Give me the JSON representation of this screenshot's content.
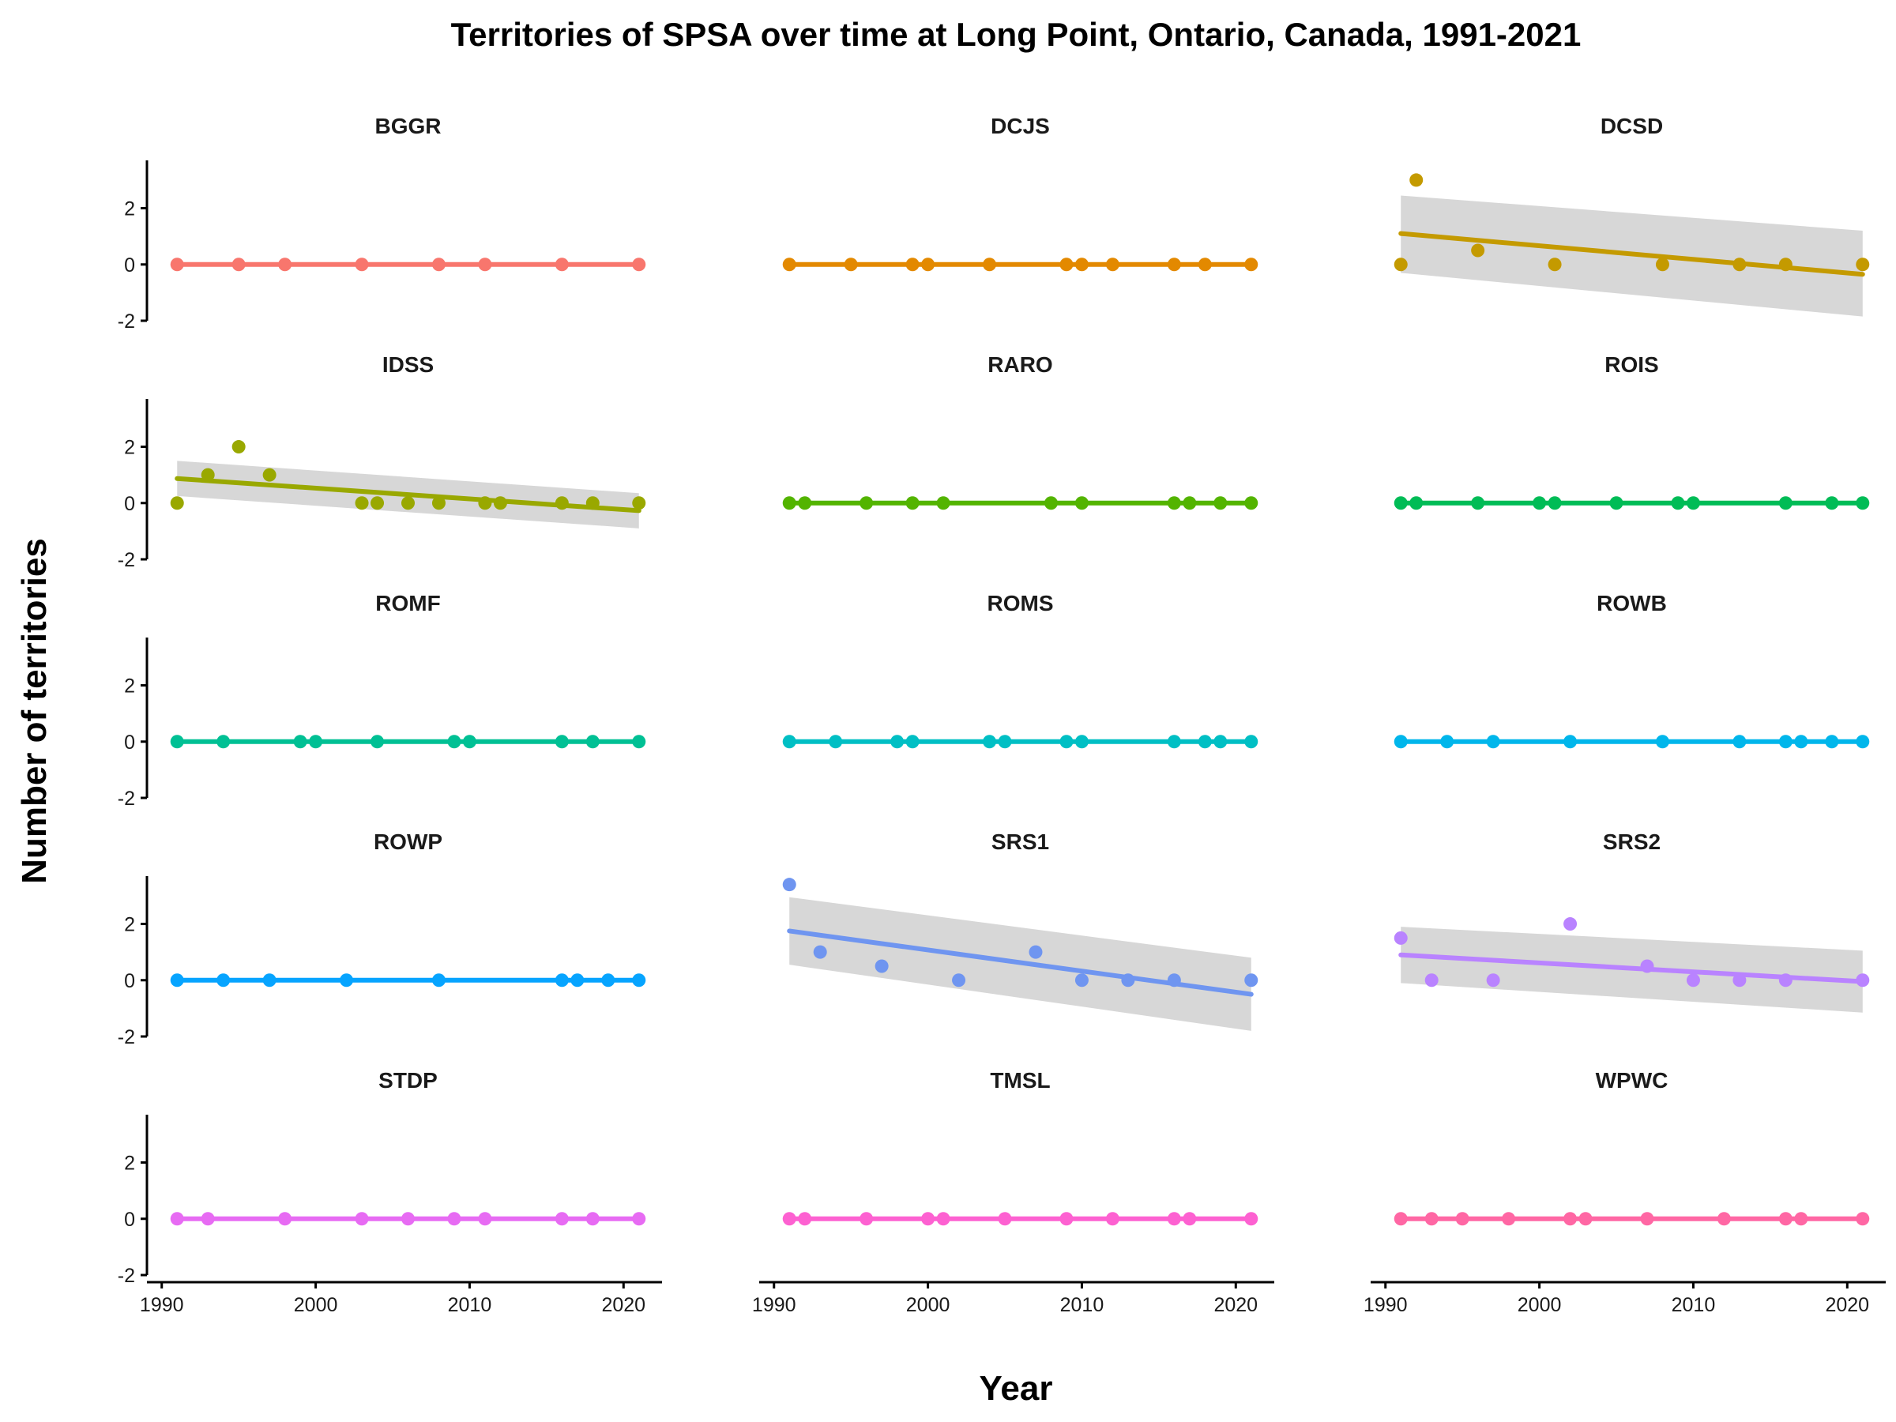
{
  "chart_data": {
    "type": "scatter",
    "title": "Territories of SPSA over time at Long Point, Ontario, Canada, 1991-2021",
    "xlabel": "Year",
    "ylabel": "Number of territories",
    "xlim": [
      1989.5,
      2022.5
    ],
    "ylim": [
      -2,
      3.7
    ],
    "x_ticks": [
      1990,
      2000,
      2010,
      2020
    ],
    "y_ticks": [
      -2,
      0,
      2
    ],
    "grid": false,
    "legend": "none",
    "trend_color": "#d3d3d3",
    "panels": [
      {
        "name": "BGGR",
        "color": "#F8766D",
        "x": [
          1991,
          1995,
          1998,
          2003,
          2008,
          2011,
          2016,
          2021
        ],
        "y": [
          0,
          0,
          0,
          0,
          0,
          0,
          0,
          0
        ],
        "trend": [
          0,
          0
        ],
        "band": null
      },
      {
        "name": "DCJS",
        "color": "#E38900",
        "x": [
          1991,
          1995,
          1999,
          2000,
          2004,
          2009,
          2010,
          2012,
          2016,
          2018,
          2021
        ],
        "y": [
          0,
          0,
          0,
          0,
          0,
          0,
          0,
          0,
          0,
          0,
          0
        ],
        "trend": [
          0,
          0
        ],
        "band": null
      },
      {
        "name": "DCSD",
        "color": "#C49A00",
        "x": [
          1991,
          1992,
          1996,
          2001,
          2008,
          2013,
          2016,
          2021
        ],
        "y": [
          0,
          3,
          0.5,
          0,
          0,
          0,
          0,
          0
        ],
        "trend": [
          1.1,
          -0.35
        ],
        "band": [
          [
            -0.3,
            2.45
          ],
          [
            -1.85,
            1.2
          ]
        ]
      },
      {
        "name": "IDSS",
        "color": "#99A800",
        "x": [
          1991,
          1993,
          1995,
          1997,
          2003,
          2004,
          2006,
          2008,
          2011,
          2012,
          2016,
          2018,
          2021
        ],
        "y": [
          0,
          1,
          2,
          1,
          0,
          0,
          0,
          0,
          0,
          0,
          0,
          0,
          0
        ],
        "trend": [
          0.87,
          -0.27
        ],
        "band": [
          [
            0.25,
            1.5
          ],
          [
            -0.9,
            0.35
          ]
        ]
      },
      {
        "name": "RARO",
        "color": "#53B400",
        "x": [
          1991,
          1992,
          1996,
          1999,
          2001,
          2008,
          2010,
          2016,
          2017,
          2019,
          2021
        ],
        "y": [
          0,
          0,
          0,
          0,
          0,
          0,
          0,
          0,
          0,
          0,
          0
        ],
        "trend": [
          0,
          0
        ],
        "band": null
      },
      {
        "name": "ROIS",
        "color": "#00BC56",
        "x": [
          1991,
          1992,
          1996,
          2000,
          2001,
          2005,
          2009,
          2010,
          2016,
          2019,
          2021
        ],
        "y": [
          0,
          0,
          0,
          0,
          0,
          0,
          0,
          0,
          0,
          0,
          0
        ],
        "trend": [
          0,
          0
        ],
        "band": null
      },
      {
        "name": "ROMF",
        "color": "#00C094",
        "x": [
          1991,
          1994,
          1999,
          2000,
          2004,
          2009,
          2010,
          2016,
          2018,
          2021
        ],
        "y": [
          0,
          0,
          0,
          0,
          0,
          0,
          0,
          0,
          0,
          0
        ],
        "trend": [
          0,
          0
        ],
        "band": null
      },
      {
        "name": "ROMS",
        "color": "#00BFC4",
        "x": [
          1991,
          1994,
          1998,
          1999,
          2004,
          2005,
          2009,
          2010,
          2016,
          2018,
          2019,
          2021
        ],
        "y": [
          0,
          0,
          0,
          0,
          0,
          0,
          0,
          0,
          0,
          0,
          0,
          0
        ],
        "trend": [
          0,
          0
        ],
        "band": null
      },
      {
        "name": "ROWB",
        "color": "#00B6EB",
        "x": [
          1991,
          1994,
          1997,
          2002,
          2008,
          2013,
          2016,
          2017,
          2019,
          2021
        ],
        "y": [
          0,
          0,
          0,
          0,
          0,
          0,
          0,
          0,
          0,
          0
        ],
        "trend": [
          0,
          0
        ],
        "band": null
      },
      {
        "name": "ROWP",
        "color": "#06A4FF",
        "x": [
          1991,
          1994,
          1997,
          2002,
          2008,
          2016,
          2017,
          2019,
          2021
        ],
        "y": [
          0,
          0,
          0,
          0,
          0,
          0,
          0,
          0,
          0
        ],
        "trend": [
          0,
          0
        ],
        "band": null
      },
      {
        "name": "SRS1",
        "color": "#6F95F0",
        "x": [
          1991,
          1993,
          1997,
          2002,
          2007,
          2010,
          2013,
          2016,
          2021
        ],
        "y": [
          3.4,
          1,
          0.5,
          0,
          1,
          0,
          0,
          0,
          0
        ],
        "trend": [
          1.75,
          -0.5
        ],
        "band": [
          [
            0.55,
            2.95
          ],
          [
            -1.8,
            0.8
          ]
        ]
      },
      {
        "name": "SRS2",
        "color": "#B983FF",
        "x": [
          1991,
          1993,
          1997,
          2002,
          2007,
          2010,
          2013,
          2016,
          2021
        ],
        "y": [
          1.5,
          0,
          0,
          2,
          0.5,
          0,
          0,
          0,
          0
        ],
        "trend": [
          0.9,
          -0.05
        ],
        "band": [
          [
            -0.1,
            1.9
          ],
          [
            -1.15,
            1.05
          ]
        ]
      },
      {
        "name": "STDP",
        "color": "#E76BF3",
        "x": [
          1991,
          1993,
          1998,
          2003,
          2006,
          2009,
          2011,
          2016,
          2018,
          2021
        ],
        "y": [
          0,
          0,
          0,
          0,
          0,
          0,
          0,
          0,
          0,
          0
        ],
        "trend": [
          0,
          0
        ],
        "band": null
      },
      {
        "name": "TMSL",
        "color": "#FD61D1",
        "x": [
          1991,
          1992,
          1996,
          2000,
          2001,
          2005,
          2009,
          2012,
          2016,
          2017,
          2021
        ],
        "y": [
          0,
          0,
          0,
          0,
          0,
          0,
          0,
          0,
          0,
          0,
          0
        ],
        "trend": [
          0,
          0
        ],
        "band": null
      },
      {
        "name": "WPWC",
        "color": "#FF67A4",
        "x": [
          1991,
          1993,
          1995,
          1998,
          2002,
          2003,
          2007,
          2012,
          2016,
          2017,
          2021
        ],
        "y": [
          0,
          0,
          0,
          0,
          0,
          0,
          0,
          0,
          0,
          0,
          0
        ],
        "trend": [
          0,
          0
        ],
        "band": null
      }
    ]
  }
}
